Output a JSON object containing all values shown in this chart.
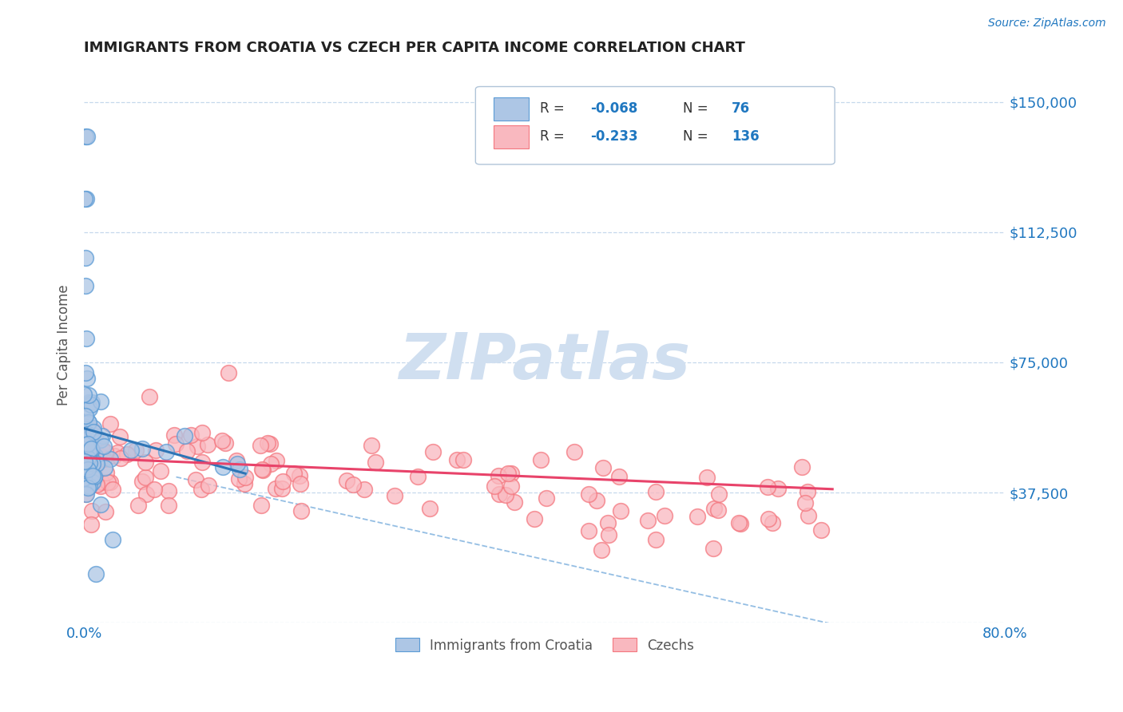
{
  "title": "IMMIGRANTS FROM CROATIA VS CZECH PER CAPITA INCOME CORRELATION CHART",
  "source": "Source: ZipAtlas.com",
  "ylabel": "Per Capita Income",
  "xlim": [
    0,
    0.8
  ],
  "ylim": [
    0,
    160000
  ],
  "yticks": [
    0,
    37500,
    75000,
    112500,
    150000
  ],
  "ytick_labels": [
    "",
    "$37,500",
    "$75,000",
    "$112,500",
    "$150,000"
  ],
  "xtick_labels": [
    "0.0%",
    "80.0%"
  ],
  "croatia_R": -0.068,
  "croatia_N": 76,
  "czech_R": -0.233,
  "czech_N": 136,
  "legend_croatia": "Immigrants from Croatia",
  "legend_czech": "Czechs",
  "blue_color": "#5b9bd5",
  "pink_color": "#f4777f",
  "blue_line_color": "#2e75b6",
  "pink_line_color": "#e8436a",
  "blue_dot_fill": "#adc6e5",
  "pink_dot_fill": "#f9b8bf",
  "watermark_color": "#d0dff0",
  "background_color": "#ffffff",
  "grid_color": "#b8cfe8",
  "title_color": "#222222",
  "axis_label_color": "#555555",
  "tick_label_color": "#1f77c0",
  "legend_R_color": "#1f77c0"
}
